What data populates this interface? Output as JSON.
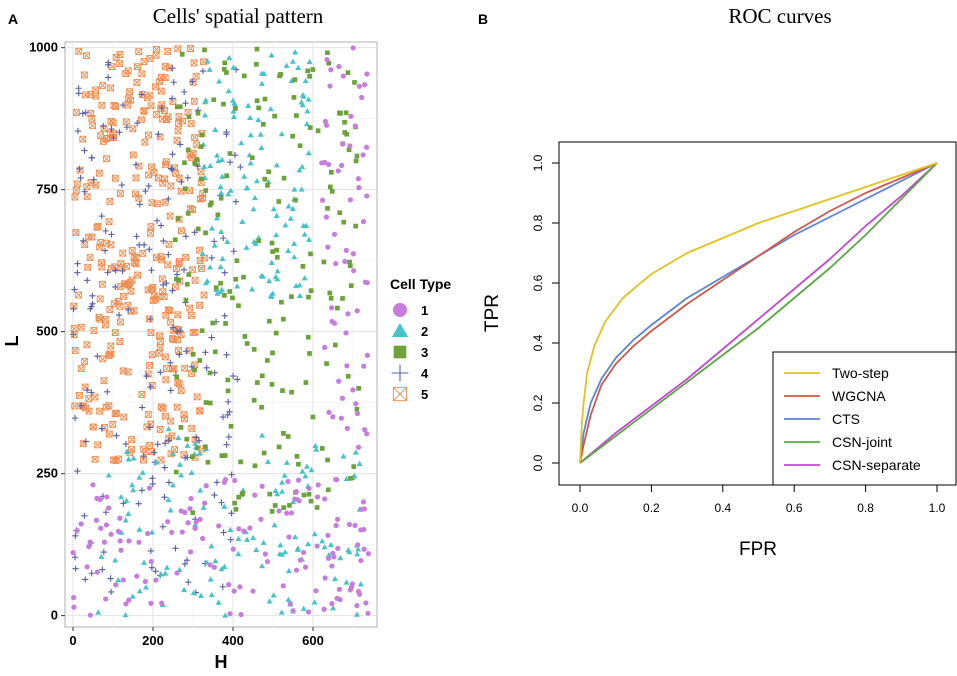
{
  "panels": {
    "a_letter": "A",
    "b_letter": "B"
  },
  "colors": {
    "type1": "#C77CDE",
    "type2": "#44C4C9",
    "type3": "#6BA33A",
    "type4": "#5A5FA8",
    "type5": "#F08A4B",
    "grid": "#E3E3E3",
    "panel_border": "#B0B0B0"
  },
  "chart_data": [
    {
      "type": "scatter",
      "title": "Cells' spatial pattern",
      "xlabel": "H",
      "ylabel": "L",
      "xlim": [
        -20,
        760
      ],
      "ylim": [
        -20,
        1010
      ],
      "xticks": [
        0,
        200,
        400,
        600
      ],
      "yticks": [
        0,
        250,
        500,
        750,
        1000
      ],
      "grid": true,
      "legend": {
        "title": "Cell Type",
        "position": "right",
        "entries": [
          {
            "label": "1",
            "shape": "circle",
            "color": "#C77CDE"
          },
          {
            "label": "2",
            "shape": "triangle",
            "color": "#44C4C9"
          },
          {
            "label": "3",
            "shape": "square",
            "color": "#6BA33A"
          },
          {
            "label": "4",
            "shape": "plus",
            "color": "#5A5FA8"
          },
          {
            "label": "5",
            "shape": "boxed-x",
            "color": "#F08A4B"
          }
        ]
      },
      "regions": [
        {
          "cell_type": "5",
          "h_range": [
            0,
            330
          ],
          "l_range": [
            270,
            1000
          ],
          "count": 340
        },
        {
          "cell_type": "4",
          "h_range": [
            0,
            420
          ],
          "l_range": [
            40,
            1000
          ],
          "count": 190
        },
        {
          "cell_type": "2",
          "h_range": [
            320,
            600
          ],
          "l_range": [
            560,
            1000
          ],
          "count": 120
        },
        {
          "cell_type": "2",
          "h_range": [
            60,
            720
          ],
          "l_range": [
            0,
            330
          ],
          "count": 130
        },
        {
          "cell_type": "3",
          "h_range": [
            250,
            720
          ],
          "l_range": [
            180,
            1000
          ],
          "count": 190
        },
        {
          "cell_type": "1",
          "h_range": [
            0,
            740
          ],
          "l_range": [
            0,
            240
          ],
          "count": 110
        },
        {
          "cell_type": "1",
          "h_range": [
            620,
            740
          ],
          "l_range": [
            0,
            1000
          ],
          "count": 85
        }
      ]
    },
    {
      "type": "line",
      "title": "ROC curves",
      "xlabel": "FPR",
      "ylabel": "TPR",
      "xlim": [
        0,
        1
      ],
      "ylim": [
        0,
        1
      ],
      "xticks": [
        0.0,
        0.2,
        0.4,
        0.6,
        0.8,
        1.0
      ],
      "yticks": [
        0.0,
        0.2,
        0.4,
        0.6,
        0.8,
        1.0
      ],
      "tick_labels": [
        "0.0",
        "0.2",
        "0.4",
        "0.6",
        "0.8",
        "1.0"
      ],
      "legend_position": "bottom-right",
      "series": [
        {
          "name": "Two-step",
          "color": "#E3C320",
          "x": [
            0,
            0.005,
            0.01,
            0.02,
            0.04,
            0.07,
            0.12,
            0.2,
            0.3,
            0.4,
            0.5,
            0.6,
            0.7,
            0.8,
            0.9,
            1.0
          ],
          "y": [
            0,
            0.13,
            0.2,
            0.3,
            0.39,
            0.47,
            0.55,
            0.63,
            0.7,
            0.75,
            0.8,
            0.84,
            0.88,
            0.92,
            0.96,
            1.0
          ]
        },
        {
          "name": "WGCNA",
          "color": "#D2574A",
          "x": [
            0,
            0.01,
            0.03,
            0.06,
            0.1,
            0.15,
            0.2,
            0.3,
            0.4,
            0.5,
            0.6,
            0.7,
            0.8,
            0.9,
            1.0
          ],
          "y": [
            0,
            0.06,
            0.16,
            0.26,
            0.33,
            0.39,
            0.44,
            0.53,
            0.61,
            0.69,
            0.77,
            0.84,
            0.9,
            0.95,
            1.0
          ]
        },
        {
          "name": "CTS",
          "color": "#5B84D6",
          "x": [
            0,
            0.01,
            0.03,
            0.06,
            0.1,
            0.15,
            0.2,
            0.3,
            0.4,
            0.5,
            0.6,
            0.7,
            0.8,
            0.9,
            1.0
          ],
          "y": [
            0,
            0.1,
            0.2,
            0.28,
            0.35,
            0.41,
            0.46,
            0.55,
            0.62,
            0.69,
            0.76,
            0.82,
            0.88,
            0.94,
            1.0
          ]
        },
        {
          "name": "CSN-joint",
          "color": "#5BA843",
          "x": [
            0,
            0.1,
            0.2,
            0.3,
            0.4,
            0.5,
            0.6,
            0.7,
            0.8,
            0.9,
            1.0
          ],
          "y": [
            0,
            0.09,
            0.18,
            0.27,
            0.36,
            0.45,
            0.55,
            0.65,
            0.76,
            0.88,
            1.0
          ]
        },
        {
          "name": "CSN-separate",
          "color": "#C04BCF",
          "x": [
            0,
            0.1,
            0.2,
            0.3,
            0.4,
            0.5,
            0.6,
            0.7,
            0.8,
            0.9,
            1.0
          ],
          "y": [
            0,
            0.1,
            0.19,
            0.28,
            0.38,
            0.48,
            0.58,
            0.68,
            0.79,
            0.89,
            1.0
          ]
        }
      ]
    }
  ]
}
